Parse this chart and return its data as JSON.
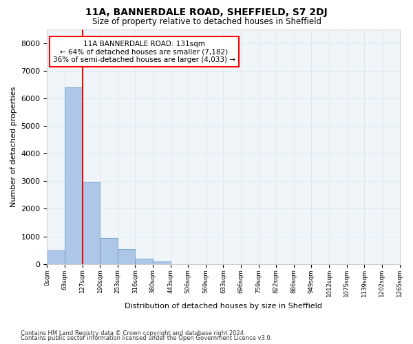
{
  "title1": "11A, BANNERDALE ROAD, SHEFFIELD, S7 2DJ",
  "title2": "Size of property relative to detached houses in Sheffield",
  "xlabel": "Distribution of detached houses by size in Sheffield",
  "ylabel": "Number of detached properties",
  "footnote1": "Contains HM Land Registry data © Crown copyright and database right 2024.",
  "footnote2": "Contains public sector information licensed under the Open Government Licence v3.0.",
  "bin_edges": [
    "0sqm",
    "63sqm",
    "127sqm",
    "190sqm",
    "253sqm",
    "316sqm",
    "380sqm",
    "443sqm",
    "506sqm",
    "569sqm",
    "633sqm",
    "696sqm",
    "759sqm",
    "822sqm",
    "886sqm",
    "949sqm",
    "1012sqm",
    "1075sqm",
    "1139sqm",
    "1202sqm",
    "1265sqm"
  ],
  "bar_values": [
    500,
    6400,
    2950,
    950,
    550,
    200,
    100,
    0,
    0,
    0,
    0,
    0,
    0,
    0,
    0,
    0,
    0,
    0,
    0,
    0
  ],
  "bar_color": "#aec6e8",
  "bar_edge_color": "#5a90c0",
  "red_line_x": 2,
  "annotation_text1": "11A BANNERDALE ROAD: 131sqm",
  "annotation_text2": "← 64% of detached houses are smaller (7,182)",
  "annotation_text3": "36% of semi-detached houses are larger (4,033) →",
  "ylim": [
    0,
    8500
  ],
  "yticks": [
    0,
    1000,
    2000,
    3000,
    4000,
    5000,
    6000,
    7000,
    8000
  ],
  "grid_color": "#dce8f0",
  "background_color": "#f0f5fa"
}
